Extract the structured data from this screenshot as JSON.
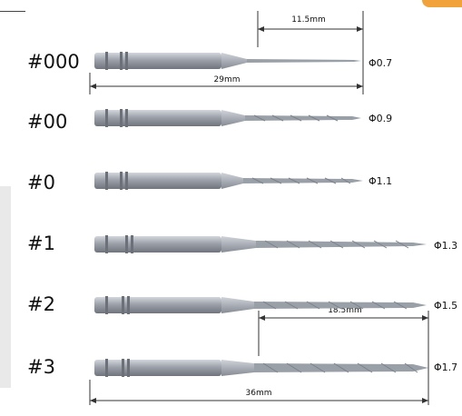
{
  "drills": [
    {
      "size": "#000",
      "diameter": "Φ0.7"
    },
    {
      "size": "#00",
      "diameter": "Φ0.9"
    },
    {
      "size": "#0",
      "diameter": "Φ1.1"
    },
    {
      "size": "#1",
      "diameter": "Φ1.3"
    },
    {
      "size": "#2",
      "diameter": "Φ1.5"
    },
    {
      "size": "#3",
      "diameter": "Φ1.7"
    }
  ],
  "dimensions": {
    "short_tip": "11.5mm",
    "short_total": "29mm",
    "long_tip": "18.5mm",
    "long_total": "36mm"
  },
  "colors": {
    "shank": "#8e939c",
    "shank_light": "#c4c8cf",
    "tip": "#9ba0a9",
    "line": "#333333",
    "accent": "#f2a23a"
  }
}
